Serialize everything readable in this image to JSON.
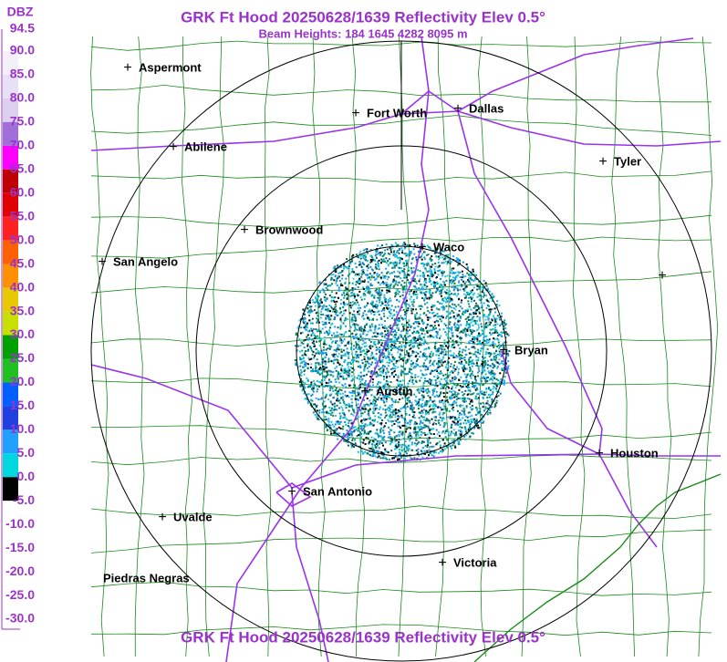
{
  "header": {
    "title": "GRK Ft Hood 20250628/1639 Reflectivity Elev 0.5°",
    "subtitle": "Beam Heights: 184 1645 4282 8095 m"
  },
  "legend": {
    "unit": "DBZ",
    "labels": [
      "94.5",
      "90.0",
      "85.0",
      "80.0",
      "75.0",
      "70.0",
      "65.0",
      "60.0",
      "55.0",
      "50.0",
      "45.0",
      "40.0",
      "35.0",
      "30.0",
      "25.0",
      "20.0",
      "15.0",
      "10.0",
      "5.0",
      "0.0",
      "-5.0",
      "-10.0",
      "-15.0",
      "-20.0",
      "-25.0",
      "-30.0"
    ],
    "colors": [
      "#ffffff",
      "#f4f0fa",
      "#e8e0f4",
      "#dcd0ee",
      "#a070d8",
      "#ff00ff",
      "#c00000",
      "#e00000",
      "#ff2020",
      "#ff6000",
      "#ff9000",
      "#e8c800",
      "#c8e000",
      "#00a000",
      "#20c020",
      "#0060ff",
      "#2040e0",
      "#20a0ff",
      "#00d8e0",
      "#000000",
      "#ffffff",
      "#ffffff",
      "#ffffff",
      "#ffffff",
      "#ffffff"
    ]
  },
  "cities": [
    {
      "name": "Aspermont"
    },
    {
      "name": "Fort Worth"
    },
    {
      "name": "Dallas"
    },
    {
      "name": "Abilene"
    },
    {
      "name": "Tyler"
    },
    {
      "name": "Brownwood"
    },
    {
      "name": "Waco"
    },
    {
      "name": "San Angelo"
    },
    {
      "name": "Bryan"
    },
    {
      "name": "Austin"
    },
    {
      "name": "Houston"
    },
    {
      "name": "San Antonio"
    },
    {
      "name": "Uvalde"
    },
    {
      "name": "Victoria"
    },
    {
      "name": "Piedras Negras"
    }
  ]
}
